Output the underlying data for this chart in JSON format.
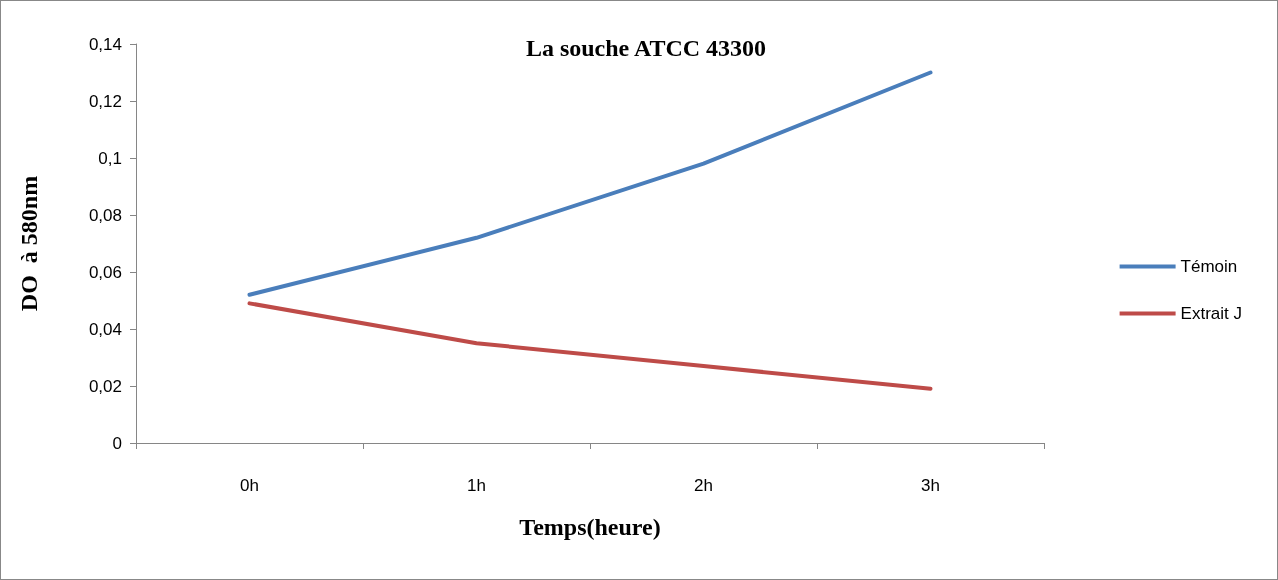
{
  "chart_data": {
    "type": "line",
    "title": "La souche ATCC 43300",
    "xlabel": "Temps(heure)",
    "ylabel": "DO  à 580nm",
    "categories": [
      "0h",
      "1h",
      "2h",
      "3h"
    ],
    "series": [
      {
        "name": "Témoin",
        "color": "#4a7ebb",
        "values": [
          0.052,
          0.072,
          0.098,
          0.13
        ]
      },
      {
        "name": "Extrait J",
        "color": "#be4b48",
        "values": [
          0.049,
          0.035,
          0.027,
          0.019
        ]
      }
    ],
    "ylim": [
      0,
      0.14
    ],
    "yticks": [
      0,
      {
        "value": 0.02,
        "label": "0,02"
      },
      {
        "value": 0.04,
        "label": "0,04"
      },
      {
        "value": 0.06,
        "label": "0,06"
      },
      {
        "value": 0.08,
        "label": "0,08"
      },
      {
        "value": 0.1,
        "label": "0,1"
      },
      {
        "value": 0.12,
        "label": "0,12"
      },
      {
        "value": 0.14,
        "label": "0,14"
      }
    ],
    "grid": false,
    "legend": "right",
    "marker": "none",
    "line_style": "solid"
  }
}
